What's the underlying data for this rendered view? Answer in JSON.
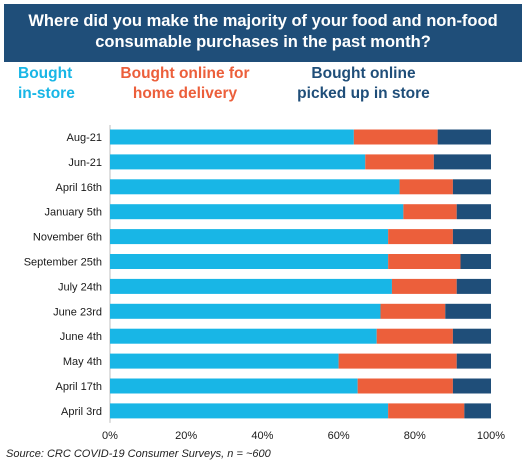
{
  "title": "Where did you make the majority of your food and non-food consumable purchases in the past month?",
  "source": "Source: CRC COVID-19 Consumer Surveys, n = ~600",
  "colors": {
    "title_bg": "#1f4e79",
    "in_store": "#18b6e6",
    "home_delivery": "#ec5f3b",
    "picked_up": "#1f4e79"
  },
  "chart_data": {
    "type": "bar",
    "orientation": "horizontal",
    "stacked": true,
    "title": "Where did you make the majority of your food and non-food consumable purchases in the past month?",
    "categories": [
      "Aug-21",
      "Jun-21",
      "April 16th",
      "January 5th",
      "November 6th",
      "September 25th",
      "July 24th",
      "June 23rd",
      "June 4th",
      "May 4th",
      "April 17th",
      "April 3rd"
    ],
    "series": [
      {
        "name": "Bought in-store",
        "color": "#18b6e6",
        "values": [
          64,
          67,
          76,
          77,
          73,
          73,
          74,
          71,
          70,
          60,
          65,
          73
        ]
      },
      {
        "name": "Bought online for home delivery",
        "color": "#ec5f3b",
        "values": [
          22,
          18,
          14,
          14,
          17,
          19,
          17,
          17,
          20,
          31,
          25,
          20
        ]
      },
      {
        "name": "Bought online picked up in store",
        "color": "#1f4e79",
        "values": [
          14,
          15,
          10,
          9,
          10,
          8,
          9,
          12,
          10,
          9,
          10,
          7
        ]
      }
    ],
    "xlim": [
      0,
      100
    ],
    "xticks": [
      "0%",
      "20%",
      "40%",
      "60%",
      "80%",
      "100%"
    ],
    "legend": "top",
    "grid": false
  }
}
